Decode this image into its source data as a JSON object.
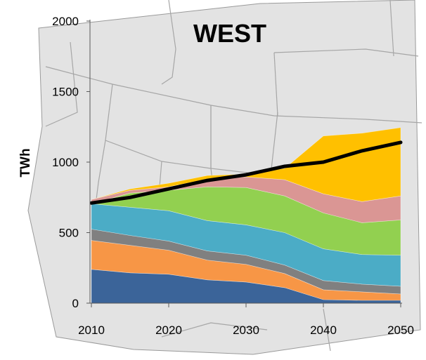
{
  "chart_data": {
    "type": "area",
    "title": "WEST",
    "xlabel": "",
    "ylabel": "TWh",
    "xlim": [
      2010,
      2050
    ],
    "ylim": [
      0,
      2000
    ],
    "x": [
      2010,
      2015,
      2020,
      2025,
      2030,
      2035,
      2040,
      2045,
      2050
    ],
    "x_ticks": [
      "2010",
      "2020",
      "2030",
      "2040",
      "2050"
    ],
    "y_ticks": [
      "0",
      "500",
      "1000",
      "1500",
      "2000"
    ],
    "grid": false,
    "legend": "none",
    "stacked": true,
    "series": [
      {
        "color": "#3b6499",
        "values": [
          240,
          215,
          205,
          165,
          150,
          110,
          25,
          20,
          20
        ]
      },
      {
        "color": "#f79646",
        "values": [
          205,
          195,
          170,
          140,
          125,
          100,
          70,
          60,
          45
        ]
      },
      {
        "color": "#808080",
        "values": [
          80,
          70,
          65,
          65,
          65,
          60,
          65,
          55,
          55
        ]
      },
      {
        "color": "#4bacc6",
        "values": [
          180,
          200,
          215,
          215,
          215,
          230,
          225,
          210,
          220
        ]
      },
      {
        "color": "#92d050",
        "values": [
          0,
          100,
          145,
          240,
          265,
          260,
          255,
          225,
          250
        ]
      },
      {
        "color": "#da9694",
        "values": [
          30,
          20,
          25,
          55,
          75,
          115,
          135,
          150,
          170
        ]
      },
      {
        "color": "#ffc000",
        "values": [
          0,
          10,
          25,
          25,
          20,
          80,
          410,
          485,
          485
        ]
      }
    ],
    "line": {
      "color": "#000000",
      "values": [
        710,
        750,
        810,
        870,
        910,
        970,
        1000,
        1080,
        1140
      ]
    }
  }
}
